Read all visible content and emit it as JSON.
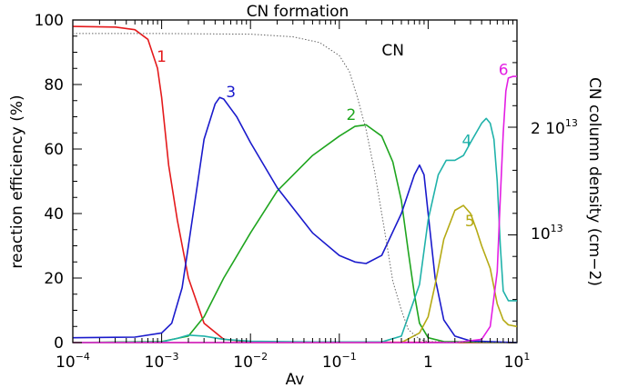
{
  "chart_data": {
    "type": "line",
    "title": "CN formation",
    "xlabel": "Av",
    "ylabel": "reaction efficiency (%)",
    "y2label": "CN column density  (cm−2)",
    "xscale": "log",
    "xlim": [
      0.0001,
      10
    ],
    "ylim": [
      0,
      100
    ],
    "y2_ticks": [
      "10",
      "13",
      "2  10",
      "13"
    ],
    "x_ticks": [
      {
        "base": "10",
        "exp": "−4"
      },
      {
        "base": "10",
        "exp": "−3"
      },
      {
        "base": "10",
        "exp": "−2"
      },
      {
        "base": "10",
        "exp": "−1"
      },
      {
        "base": "1",
        "exp": ""
      },
      {
        "base": "10",
        "exp": "1"
      }
    ],
    "y_ticks": [
      "0",
      "20",
      "40",
      "60",
      "80",
      "100"
    ],
    "colors": {
      "1": "#e41a1c",
      "2": "#1fa51f",
      "3": "#1a1acc",
      "4": "#20b2aa",
      "5": "#b5aa14",
      "6": "#e31ee3",
      "CN": "#666666"
    },
    "series": [
      {
        "name": "1",
        "points": [
          [
            0.0001,
            98
          ],
          [
            0.0003,
            97.8
          ],
          [
            0.0005,
            97
          ],
          [
            0.0007,
            94
          ],
          [
            0.0009,
            85
          ],
          [
            0.001,
            76
          ],
          [
            0.0012,
            55
          ],
          [
            0.0015,
            38
          ],
          [
            0.002,
            20
          ],
          [
            0.003,
            6
          ],
          [
            0.005,
            1
          ],
          [
            0.01,
            0.2
          ],
          [
            10,
            0
          ]
        ]
      },
      {
        "name": "2",
        "points": [
          [
            0.0001,
            0
          ],
          [
            0.001,
            0.3
          ],
          [
            0.002,
            2
          ],
          [
            0.003,
            8
          ],
          [
            0.005,
            20
          ],
          [
            0.01,
            34
          ],
          [
            0.02,
            47
          ],
          [
            0.05,
            58
          ],
          [
            0.1,
            64
          ],
          [
            0.15,
            67
          ],
          [
            0.2,
            67.5
          ],
          [
            0.3,
            64
          ],
          [
            0.4,
            56
          ],
          [
            0.5,
            44
          ],
          [
            0.6,
            28
          ],
          [
            0.7,
            15
          ],
          [
            0.8,
            6
          ],
          [
            1,
            1.5
          ],
          [
            1.5,
            0.3
          ],
          [
            10,
            0
          ]
        ]
      },
      {
        "name": "3",
        "points": [
          [
            0.0001,
            1.5
          ],
          [
            0.0005,
            1.7
          ],
          [
            0.001,
            3
          ],
          [
            0.0013,
            6
          ],
          [
            0.0017,
            17
          ],
          [
            0.002,
            30
          ],
          [
            0.0025,
            48
          ],
          [
            0.003,
            63
          ],
          [
            0.004,
            74
          ],
          [
            0.0045,
            76
          ],
          [
            0.005,
            75.5
          ],
          [
            0.007,
            70
          ],
          [
            0.01,
            62
          ],
          [
            0.02,
            48
          ],
          [
            0.05,
            34
          ],
          [
            0.1,
            27
          ],
          [
            0.15,
            25
          ],
          [
            0.2,
            24.5
          ],
          [
            0.3,
            27
          ],
          [
            0.5,
            40
          ],
          [
            0.7,
            52
          ],
          [
            0.8,
            55
          ],
          [
            0.9,
            52
          ],
          [
            1,
            40
          ],
          [
            1.2,
            20
          ],
          [
            1.5,
            7
          ],
          [
            2,
            2
          ],
          [
            3,
            0.5
          ],
          [
            10,
            0
          ]
        ]
      },
      {
        "name": "4",
        "points": [
          [
            0.0001,
            0
          ],
          [
            0.001,
            0.2
          ],
          [
            0.0015,
            1.3
          ],
          [
            0.002,
            2.3
          ],
          [
            0.003,
            2
          ],
          [
            0.005,
            1
          ],
          [
            0.01,
            0.4
          ],
          [
            0.05,
            0.2
          ],
          [
            0.3,
            0.2
          ],
          [
            0.5,
            2
          ],
          [
            0.8,
            18
          ],
          [
            1,
            38
          ],
          [
            1.3,
            52
          ],
          [
            1.6,
            56.5
          ],
          [
            2,
            56.5
          ],
          [
            2.5,
            58
          ],
          [
            3,
            62
          ],
          [
            4,
            68
          ],
          [
            4.5,
            69.5
          ],
          [
            5,
            68
          ],
          [
            5.5,
            63
          ],
          [
            6,
            50
          ],
          [
            6.5,
            30
          ],
          [
            7,
            16
          ],
          [
            8,
            13
          ],
          [
            10,
            13
          ]
        ]
      },
      {
        "name": "5",
        "points": [
          [
            0.0001,
            0
          ],
          [
            0.5,
            0
          ],
          [
            0.8,
            3
          ],
          [
            1,
            8
          ],
          [
            1.2,
            18
          ],
          [
            1.5,
            32
          ],
          [
            2,
            41
          ],
          [
            2.5,
            42.5
          ],
          [
            3,
            40
          ],
          [
            3.5,
            35
          ],
          [
            4,
            30
          ],
          [
            5,
            23
          ],
          [
            6,
            12
          ],
          [
            7,
            7
          ],
          [
            8,
            5.5
          ],
          [
            10,
            5
          ]
        ]
      },
      {
        "name": "6",
        "points": [
          [
            0.0001,
            0
          ],
          [
            2,
            0
          ],
          [
            4,
            1
          ],
          [
            5,
            5
          ],
          [
            6,
            22
          ],
          [
            6.5,
            45
          ],
          [
            7,
            65
          ],
          [
            7.5,
            78
          ],
          [
            8,
            82
          ],
          [
            9,
            82.5
          ],
          [
            10,
            82.5
          ]
        ]
      },
      {
        "name": "CN",
        "dashed": true,
        "points": [
          [
            0.0001,
            95.8
          ],
          [
            0.001,
            95.8
          ],
          [
            0.01,
            95.6
          ],
          [
            0.03,
            94.8
          ],
          [
            0.06,
            93
          ],
          [
            0.1,
            89
          ],
          [
            0.13,
            84
          ],
          [
            0.16,
            76
          ],
          [
            0.2,
            66
          ],
          [
            0.25,
            53
          ],
          [
            0.3,
            40
          ],
          [
            0.35,
            29
          ],
          [
            0.4,
            19
          ],
          [
            0.5,
            10
          ],
          [
            0.6,
            4
          ],
          [
            0.8,
            1
          ],
          [
            1,
            0.3
          ],
          [
            10,
            0
          ]
        ]
      }
    ],
    "labels": [
      {
        "text": "1",
        "series": "1",
        "x": 0.00088,
        "y": 87
      },
      {
        "text": "2",
        "series": "2",
        "x": 0.12,
        "y": 69
      },
      {
        "text": "3",
        "series": "3",
        "x": 0.0053,
        "y": 76
      },
      {
        "text": "4",
        "series": "4",
        "x": 2.4,
        "y": 61
      },
      {
        "text": "5",
        "series": "5",
        "x": 2.6,
        "y": 36
      },
      {
        "text": "6",
        "series": "6",
        "x": 6.2,
        "y": 83
      },
      {
        "text": "CN",
        "series": "CN",
        "x": 0.3,
        "y": 89
      }
    ]
  }
}
